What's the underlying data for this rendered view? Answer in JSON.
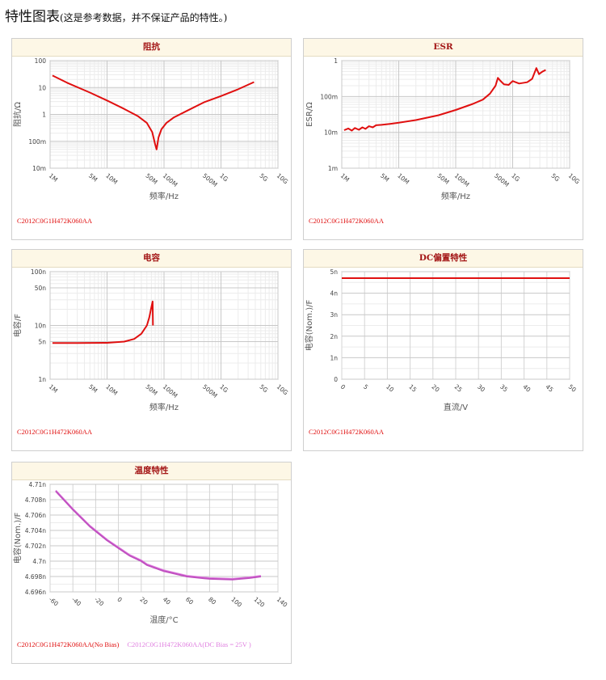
{
  "heading": {
    "title": "特性图表",
    "note": "(这是参考数据，并不保证产品的特性。)"
  },
  "colors": {
    "red": "#e01010",
    "magenta": "#e080e0"
  },
  "chart_data": [
    {
      "id": "impedance",
      "type": "line",
      "title": "阻抗",
      "xlabel": "频率/Hz",
      "ylabel": "阻抗/Ω",
      "xscale": "log",
      "yscale": "log",
      "grid": true,
      "xlim": [
        1000000,
        10000000000
      ],
      "ylim": [
        0.01,
        100
      ],
      "xticks": [
        {
          "v": 1000000,
          "l": "1M"
        },
        {
          "v": 5000000,
          "l": "5M"
        },
        {
          "v": 10000000,
          "l": "10M"
        },
        {
          "v": 50000000,
          "l": "50M"
        },
        {
          "v": 100000000,
          "l": "100M"
        },
        {
          "v": 500000000,
          "l": "500M"
        },
        {
          "v": 1000000000,
          "l": "1G"
        },
        {
          "v": 5000000000,
          "l": "5G"
        },
        {
          "v": 10000000000,
          "l": "10G"
        }
      ],
      "yticks": [
        {
          "v": 0.01,
          "l": "10m"
        },
        {
          "v": 0.1,
          "l": "100m"
        },
        {
          "v": 1,
          "l": "1"
        },
        {
          "v": 10,
          "l": "10"
        },
        {
          "v": 100,
          "l": "100"
        }
      ],
      "legend": [
        "C2012C0G1H472K060AA"
      ],
      "series": [
        {
          "color": "#e01010",
          "points": [
            [
              1100000,
              28
            ],
            [
              2000000,
              15
            ],
            [
              5000000,
              6.5
            ],
            [
              10000000,
              3.3
            ],
            [
              20000000,
              1.6
            ],
            [
              35000000,
              0.85
            ],
            [
              50000000,
              0.48
            ],
            [
              62000000,
              0.22
            ],
            [
              70000000,
              0.075
            ],
            [
              74000000,
              0.05
            ],
            [
              80000000,
              0.14
            ],
            [
              90000000,
              0.28
            ],
            [
              110000000,
              0.48
            ],
            [
              150000000,
              0.78
            ],
            [
              250000000,
              1.35
            ],
            [
              500000000,
              2.8
            ],
            [
              1000000000,
              4.8
            ],
            [
              2000000000,
              8.6
            ],
            [
              3800000000,
              16
            ]
          ]
        }
      ]
    },
    {
      "id": "esr",
      "type": "line",
      "title": "ESR",
      "xlabel": "频率/Hz",
      "ylabel": "ESR/Ω",
      "xscale": "log",
      "yscale": "log",
      "grid": true,
      "xlim": [
        1000000,
        10000000000
      ],
      "ylim": [
        0.001,
        1
      ],
      "xticks": [
        {
          "v": 1000000,
          "l": "1M"
        },
        {
          "v": 5000000,
          "l": "5M"
        },
        {
          "v": 10000000,
          "l": "10M"
        },
        {
          "v": 50000000,
          "l": "50M"
        },
        {
          "v": 100000000,
          "l": "100M"
        },
        {
          "v": 500000000,
          "l": "500M"
        },
        {
          "v": 1000000000,
          "l": "1G"
        },
        {
          "v": 5000000000,
          "l": "5G"
        },
        {
          "v": 10000000000,
          "l": "10G"
        }
      ],
      "yticks": [
        {
          "v": 0.001,
          "l": "1m"
        },
        {
          "v": 0.01,
          "l": "10m"
        },
        {
          "v": 0.1,
          "l": "100m"
        },
        {
          "v": 1,
          "l": "1"
        }
      ],
      "legend": [
        "C2012C0G1H472K060AA"
      ],
      "series": [
        {
          "color": "#e01010",
          "points": [
            [
              1100000,
              0.0115
            ],
            [
              1300000,
              0.0128
            ],
            [
              1500000,
              0.0112
            ],
            [
              1700000,
              0.0132
            ],
            [
              2000000,
              0.0118
            ],
            [
              2300000,
              0.0138
            ],
            [
              2600000,
              0.0125
            ],
            [
              3000000,
              0.0148
            ],
            [
              3500000,
              0.0138
            ],
            [
              4000000,
              0.0158
            ],
            [
              5000000,
              0.0162
            ],
            [
              7000000,
              0.0172
            ],
            [
              10000000,
              0.0185
            ],
            [
              20000000,
              0.022
            ],
            [
              50000000,
              0.03
            ],
            [
              100000000,
              0.042
            ],
            [
              200000000,
              0.062
            ],
            [
              300000000,
              0.082
            ],
            [
              400000000,
              0.12
            ],
            [
              500000000,
              0.2
            ],
            [
              550000000,
              0.33
            ],
            [
              600000000,
              0.28
            ],
            [
              700000000,
              0.22
            ],
            [
              850000000,
              0.21
            ],
            [
              1000000000,
              0.27
            ],
            [
              1300000000,
              0.23
            ],
            [
              1800000000,
              0.25
            ],
            [
              2200000000,
              0.31
            ],
            [
              2600000000,
              0.62
            ],
            [
              2900000000,
              0.42
            ],
            [
              3300000000,
              0.49
            ],
            [
              3800000000,
              0.55
            ]
          ]
        }
      ]
    },
    {
      "id": "capacitance",
      "type": "line",
      "title": "电容",
      "xlabel": "频率/Hz",
      "ylabel": "电容/F",
      "xscale": "log",
      "yscale": "log",
      "grid": true,
      "xlim": [
        1000000,
        10000000000
      ],
      "ylim": [
        1e-09,
        1e-07
      ],
      "xticks": [
        {
          "v": 1000000,
          "l": "1M"
        },
        {
          "v": 5000000,
          "l": "5M"
        },
        {
          "v": 10000000,
          "l": "10M"
        },
        {
          "v": 50000000,
          "l": "50M"
        },
        {
          "v": 100000000,
          "l": "100M"
        },
        {
          "v": 500000000,
          "l": "500M"
        },
        {
          "v": 1000000000,
          "l": "1G"
        },
        {
          "v": 5000000000,
          "l": "5G"
        },
        {
          "v": 10000000000,
          "l": "10G"
        }
      ],
      "yticks": [
        {
          "v": 1e-09,
          "l": "1n"
        },
        {
          "v": 5e-09,
          "l": "5n"
        },
        {
          "v": 1e-08,
          "l": "10n"
        },
        {
          "v": 5e-08,
          "l": "50n"
        },
        {
          "v": 1e-07,
          "l": "100n"
        }
      ],
      "legend": [
        "C2012C0G1H472K060AA"
      ],
      "series": [
        {
          "color": "#e01010",
          "points": [
            [
              1100000,
              4.7e-09
            ],
            [
              3000000,
              4.7e-09
            ],
            [
              10000000,
              4.75e-09
            ],
            [
              20000000,
              5e-09
            ],
            [
              30000000,
              5.6e-09
            ],
            [
              40000000,
              7e-09
            ],
            [
              50000000,
              1e-08
            ],
            [
              55000000,
              1.4e-08
            ],
            [
              60000000,
              2.2e-08
            ],
            [
              63000000,
              2.8e-08
            ],
            [
              64000000,
              1e-08
            ]
          ]
        }
      ]
    },
    {
      "id": "dc-bias",
      "type": "line",
      "title": "DC偏置特性",
      "xlabel": "直流/V",
      "ylabel": "电容(Nom.)/F",
      "xscale": "linear",
      "yscale": "linear",
      "grid": true,
      "xlim": [
        0,
        50
      ],
      "ylim": [
        0,
        5e-09
      ],
      "xticks": [
        {
          "v": 0,
          "l": "0"
        },
        {
          "v": 5,
          "l": "5"
        },
        {
          "v": 10,
          "l": "10"
        },
        {
          "v": 15,
          "l": "15"
        },
        {
          "v": 20,
          "l": "20"
        },
        {
          "v": 25,
          "l": "25"
        },
        {
          "v": 30,
          "l": "30"
        },
        {
          "v": 35,
          "l": "35"
        },
        {
          "v": 40,
          "l": "40"
        },
        {
          "v": 45,
          "l": "45"
        },
        {
          "v": 50,
          "l": "50"
        }
      ],
      "yticks": [
        {
          "v": 0,
          "l": "0"
        },
        {
          "v": 1e-09,
          "l": "1n"
        },
        {
          "v": 2e-09,
          "l": "2n"
        },
        {
          "v": 3e-09,
          "l": "3n"
        },
        {
          "v": 4e-09,
          "l": "4n"
        },
        {
          "v": 5e-09,
          "l": "5n"
        }
      ],
      "legend": [
        "C2012C0G1H472K060AA"
      ],
      "series": [
        {
          "color": "#e01010",
          "points": [
            [
              0,
              4.7e-09
            ],
            [
              50,
              4.7e-09
            ]
          ]
        }
      ]
    },
    {
      "id": "temperature",
      "type": "line",
      "title": "温度特性",
      "xlabel": "温度/°C",
      "ylabel": "电容(Nom.)/F",
      "xscale": "linear",
      "yscale": "linear",
      "grid": true,
      "xlim": [
        -60,
        140
      ],
      "ylim": [
        4.696e-09,
        4.71e-09
      ],
      "xticks": [
        {
          "v": -60,
          "l": "-60"
        },
        {
          "v": -40,
          "l": "-40"
        },
        {
          "v": -20,
          "l": "-20"
        },
        {
          "v": 0,
          "l": "0"
        },
        {
          "v": 20,
          "l": "20"
        },
        {
          "v": 40,
          "l": "40"
        },
        {
          "v": 60,
          "l": "60"
        },
        {
          "v": 80,
          "l": "80"
        },
        {
          "v": 100,
          "l": "100"
        },
        {
          "v": 120,
          "l": "120"
        },
        {
          "v": 140,
          "l": "140"
        }
      ],
      "yticks": [
        {
          "v": 4.696e-09,
          "l": "4.696n"
        },
        {
          "v": 4.698e-09,
          "l": "4.698n"
        },
        {
          "v": 4.7e-09,
          "l": "4.7n"
        },
        {
          "v": 4.702e-09,
          "l": "4.702n"
        },
        {
          "v": 4.704e-09,
          "l": "4.704n"
        },
        {
          "v": 4.706e-09,
          "l": "4.706n"
        },
        {
          "v": 4.708e-09,
          "l": "4.708n"
        },
        {
          "v": 4.71e-09,
          "l": "4.71n"
        }
      ],
      "legend": [
        "C2012C0G1H472K060AA(No Bias)",
        "C2012C0G1H472K060AA(DC Bias = 25V )"
      ],
      "series": [
        {
          "color": "#e080e0",
          "points": [
            [
              -55,
              4.7092e-09
            ],
            [
              -40,
              4.7068e-09
            ],
            [
              -25,
              4.7046e-09
            ],
            [
              -10,
              4.7028e-09
            ],
            [
              0,
              4.7018e-09
            ],
            [
              10,
              4.7008e-09
            ],
            [
              20,
              4.7001e-09
            ],
            [
              25,
              4.6996e-09
            ],
            [
              40,
              4.6988e-09
            ],
            [
              60,
              4.6981e-09
            ],
            [
              80,
              4.6978e-09
            ],
            [
              100,
              4.6977e-09
            ],
            [
              115,
              4.6979e-09
            ],
            [
              125,
              4.6981e-09
            ]
          ]
        },
        {
          "color": "#c050c0",
          "points": [
            [
              -55,
              4.7091e-09
            ],
            [
              -40,
              4.7067e-09
            ],
            [
              -25,
              4.7045e-09
            ],
            [
              -10,
              4.7027e-09
            ],
            [
              0,
              4.7017e-09
            ],
            [
              10,
              4.7007e-09
            ],
            [
              20,
              4.7e-09
            ],
            [
              25,
              4.6995e-09
            ],
            [
              40,
              4.6987e-09
            ],
            [
              60,
              4.698e-09
            ],
            [
              80,
              4.6977e-09
            ],
            [
              100,
              4.6976e-09
            ],
            [
              115,
              4.6978e-09
            ],
            [
              125,
              4.698e-09
            ]
          ]
        }
      ]
    }
  ]
}
